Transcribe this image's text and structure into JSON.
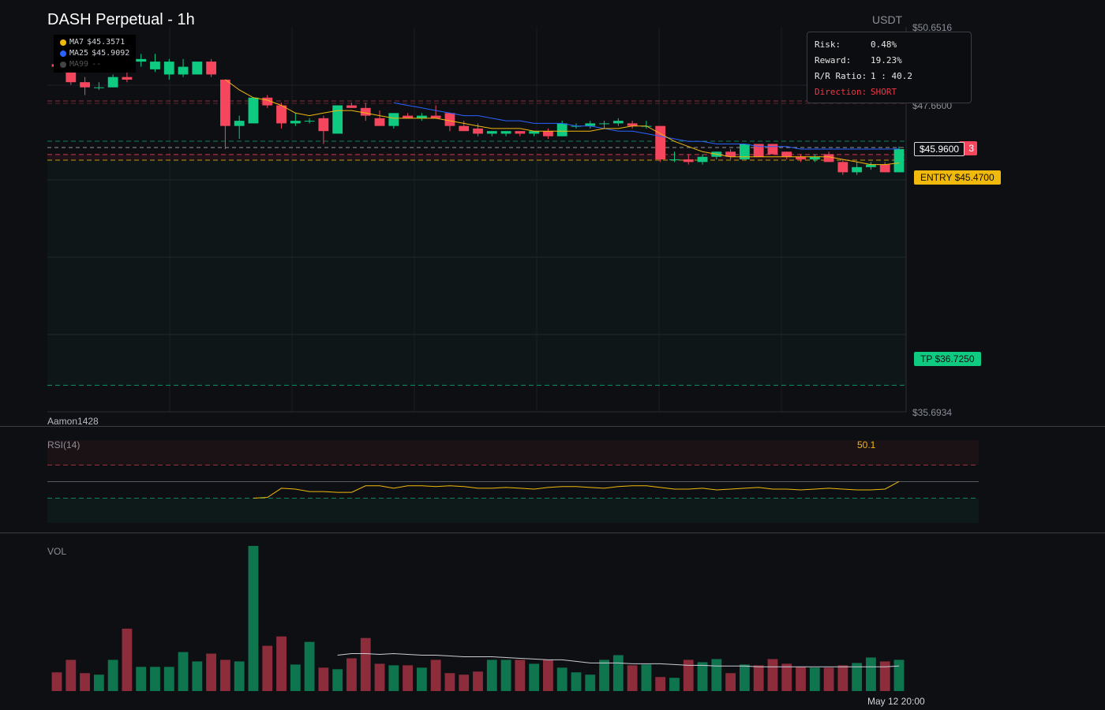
{
  "header": {
    "title": "DASH Perpetual - 1h",
    "currency": "USDT"
  },
  "price_axis": {
    "top_label": "$50.6516",
    "mid_label": "$47.6600",
    "bottom_label": "$35.6934"
  },
  "legend": {
    "ma7": {
      "label": "MA7",
      "value": "$45.3571",
      "color": "#f0b90b"
    },
    "ma25": {
      "label": "MA25",
      "value": "$45.9092",
      "color": "#2962ff"
    },
    "ma99": {
      "label": "MA99",
      "value": "--",
      "color": "#555555"
    }
  },
  "risk_box": {
    "risk_key": "Risk:",
    "risk_val": "0.48%",
    "reward_key": "Reward:",
    "reward_val": "19.23%",
    "ratio_key": "R/R Ratio:",
    "ratio_val": "1 : 40.2",
    "dir_key": "Direction:",
    "dir_val": "SHORT"
  },
  "tags": {
    "current": "$45.9600",
    "sl_fragment": "3",
    "entry": "ENTRY $45.4700",
    "tp": "TP $36.7250"
  },
  "watermark": "Aamon1428",
  "rsi": {
    "label": "RSI(14)",
    "value": "50.1"
  },
  "volume": {
    "label": "VOL"
  },
  "time_axis": {
    "label": "May 12 20:00"
  },
  "colors": {
    "up": "#0ecb81",
    "down": "#f6465d",
    "bg": "#0e0f13"
  },
  "chart_data": [
    {
      "type": "candlestick",
      "title": "DASH Perpetual - 1h",
      "ylim": [
        35.6934,
        50.6516
      ],
      "levels": {
        "entry": 45.47,
        "take_profit": 36.725,
        "stop_loss": 45.69,
        "current": 45.96
      },
      "candles": [
        [
          49.2,
          49.4,
          48.9,
          49.1
        ],
        [
          49.0,
          49.2,
          48.4,
          48.5
        ],
        [
          48.5,
          48.7,
          48.0,
          48.3
        ],
        [
          48.3,
          48.5,
          48.2,
          48.3
        ],
        [
          48.3,
          48.8,
          48.3,
          48.7
        ],
        [
          48.7,
          48.9,
          48.5,
          48.6
        ],
        [
          49.3,
          49.6,
          49.1,
          49.4
        ],
        [
          49.0,
          49.6,
          48.9,
          49.3
        ],
        [
          48.8,
          49.4,
          48.6,
          49.3
        ],
        [
          48.8,
          49.4,
          48.7,
          49.1
        ],
        [
          48.8,
          49.3,
          48.8,
          49.3
        ],
        [
          49.3,
          49.4,
          48.7,
          48.8
        ],
        [
          48.6,
          48.6,
          45.9,
          46.8
        ],
        [
          46.8,
          47.2,
          46.3,
          47.0
        ],
        [
          46.9,
          47.9,
          46.9,
          47.9
        ],
        [
          47.9,
          48.0,
          47.5,
          47.6
        ],
        [
          47.6,
          47.7,
          46.7,
          46.9
        ],
        [
          46.9,
          47.3,
          46.8,
          47.0
        ],
        [
          47.0,
          47.1,
          46.9,
          47.0
        ],
        [
          47.1,
          47.2,
          46.1,
          46.6
        ],
        [
          46.5,
          47.6,
          46.5,
          47.6
        ],
        [
          47.6,
          47.7,
          47.5,
          47.5
        ],
        [
          47.5,
          47.7,
          47.0,
          47.2
        ],
        [
          47.1,
          47.4,
          46.9,
          46.8
        ],
        [
          46.8,
          47.3,
          46.7,
          47.3
        ],
        [
          47.2,
          47.3,
          47.1,
          47.1
        ],
        [
          47.1,
          47.3,
          47.0,
          47.2
        ],
        [
          47.2,
          47.6,
          47.1,
          47.1
        ],
        [
          47.3,
          47.3,
          46.6,
          46.8
        ],
        [
          46.8,
          47.0,
          46.6,
          46.6
        ],
        [
          46.7,
          46.9,
          46.4,
          46.5
        ],
        [
          46.5,
          46.6,
          46.4,
          46.6
        ],
        [
          46.5,
          46.6,
          46.4,
          46.6
        ],
        [
          46.6,
          46.6,
          46.4,
          46.5
        ],
        [
          46.5,
          46.6,
          46.4,
          46.6
        ],
        [
          46.6,
          46.7,
          46.3,
          46.4
        ],
        [
          46.4,
          47.0,
          46.4,
          46.9
        ],
        [
          46.8,
          46.9,
          46.7,
          46.8
        ],
        [
          46.8,
          47.0,
          46.7,
          46.9
        ],
        [
          46.9,
          47.0,
          46.7,
          46.9
        ],
        [
          46.9,
          47.1,
          46.8,
          47.0
        ],
        [
          46.9,
          47.0,
          46.7,
          46.8
        ],
        [
          46.8,
          47.0,
          46.7,
          46.8
        ],
        [
          46.8,
          46.8,
          45.4,
          45.5
        ],
        [
          45.5,
          45.8,
          45.4,
          45.5
        ],
        [
          45.5,
          45.7,
          45.3,
          45.4
        ],
        [
          45.4,
          45.7,
          45.3,
          45.6
        ],
        [
          45.6,
          45.8,
          45.5,
          45.8
        ],
        [
          45.8,
          45.9,
          45.5,
          45.6
        ],
        [
          45.5,
          46.1,
          45.5,
          46.1
        ],
        [
          46.1,
          46.1,
          45.6,
          45.6
        ],
        [
          46.1,
          46.1,
          45.7,
          45.7
        ],
        [
          45.8,
          45.8,
          45.5,
          45.6
        ],
        [
          45.6,
          45.7,
          45.4,
          45.5
        ],
        [
          45.5,
          45.7,
          45.4,
          45.6
        ],
        [
          45.7,
          45.8,
          45.4,
          45.4
        ],
        [
          45.4,
          45.5,
          44.9,
          45.0
        ],
        [
          45.0,
          45.4,
          44.9,
          45.2
        ],
        [
          45.2,
          45.4,
          45.1,
          45.3
        ],
        [
          45.3,
          45.4,
          45.0,
          45.0
        ],
        [
          45.0,
          46.0,
          45.0,
          45.9
        ]
      ],
      "ma7": [
        null,
        null,
        null,
        null,
        null,
        null,
        null,
        null,
        null,
        null,
        null,
        null,
        48.6,
        48.2,
        47.9,
        47.8,
        47.6,
        47.3,
        47.2,
        47.3,
        47.4,
        47.4,
        47.3,
        47.2,
        47.1,
        47.1,
        47.1,
        47.1,
        47.0,
        46.9,
        46.8,
        46.7,
        46.7,
        46.7,
        46.6,
        46.6,
        46.6,
        46.6,
        46.6,
        46.7,
        46.7,
        46.8,
        46.8,
        46.5,
        46.2,
        46.0,
        45.8,
        45.7,
        45.6,
        45.6,
        45.6,
        45.6,
        45.6,
        45.6,
        45.6,
        45.6,
        45.5,
        45.4,
        45.3,
        45.3,
        45.36
      ],
      "ma25": [
        null,
        null,
        null,
        null,
        null,
        null,
        null,
        null,
        null,
        null,
        null,
        null,
        null,
        null,
        null,
        null,
        null,
        null,
        null,
        null,
        null,
        null,
        null,
        null,
        47.7,
        47.6,
        47.5,
        47.4,
        47.3,
        47.2,
        47.2,
        47.1,
        47.0,
        47.0,
        46.9,
        46.9,
        46.9,
        46.8,
        46.8,
        46.7,
        46.6,
        46.6,
        46.5,
        46.4,
        46.3,
        46.2,
        46.2,
        46.1,
        46.1,
        46.1,
        46.0,
        46.0,
        46.0,
        45.9,
        45.9,
        45.9,
        45.9,
        45.9,
        45.9,
        45.9,
        45.91
      ]
    },
    {
      "type": "line",
      "title": "RSI(14)",
      "ylim": [
        0,
        100
      ],
      "overbought": 70,
      "oversold": 30,
      "values": [
        null,
        null,
        null,
        null,
        null,
        null,
        null,
        null,
        null,
        null,
        null,
        null,
        null,
        null,
        30,
        31,
        42,
        41,
        38,
        38,
        37,
        37,
        45,
        45,
        42,
        45,
        45,
        44,
        45,
        44,
        42,
        42,
        43,
        42,
        41,
        43,
        44,
        44,
        43,
        42,
        44,
        45,
        45,
        43,
        41,
        41,
        42,
        40,
        41,
        42,
        43,
        41,
        41,
        40,
        41,
        42,
        41,
        40,
        40,
        41,
        50.1
      ]
    },
    {
      "type": "bar",
      "title": "VOL",
      "values": [
        24,
        40,
        23,
        21,
        40,
        80,
        31,
        31,
        31,
        50,
        38,
        48,
        40,
        38,
        186,
        58,
        70,
        34,
        63,
        30,
        28,
        42,
        68,
        35,
        33,
        33,
        30,
        40,
        23,
        21,
        25,
        40,
        40,
        40,
        35,
        40,
        30,
        24,
        21,
        40,
        46,
        33,
        34,
        18,
        17,
        40,
        37,
        41,
        23,
        34,
        33,
        41,
        35,
        31,
        30,
        30,
        33,
        36,
        43,
        38,
        40
      ],
      "ma": [
        null,
        null,
        null,
        null,
        null,
        null,
        null,
        null,
        null,
        null,
        null,
        null,
        null,
        null,
        null,
        null,
        null,
        null,
        null,
        null,
        46,
        48,
        48,
        47,
        48,
        47,
        46,
        46,
        45,
        44,
        44,
        44,
        43,
        42,
        41,
        40,
        40,
        38,
        36,
        36,
        36,
        35,
        35,
        35,
        34,
        33,
        33,
        32,
        32,
        32,
        31,
        31,
        31,
        31,
        31,
        31,
        31,
        31,
        31,
        31,
        32
      ]
    }
  ]
}
